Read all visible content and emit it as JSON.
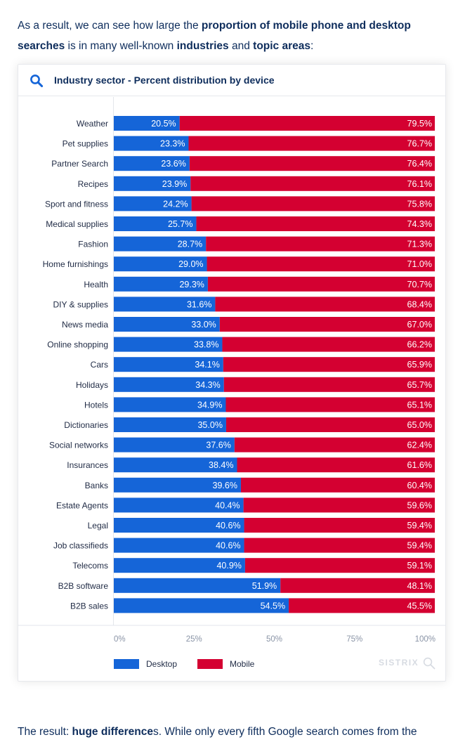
{
  "intro": {
    "t1": "As a result, we can see how large the ",
    "b1": "proportion of mobile phone and desktop searches",
    "t2": " is in many well-known ",
    "b2": "industries",
    "t3": " and ",
    "b3": "topic areas",
    "t4": ":"
  },
  "card": {
    "title": "Industry sector - Percent distribution by device",
    "icon": "search-icon",
    "watermark": "SISTRIX"
  },
  "colors": {
    "desktop": "#1565d8",
    "mobile": "#d40031",
    "text": "#0e2d5c"
  },
  "chart_data": {
    "type": "bar",
    "orientation": "horizontal",
    "stacked": true,
    "title": "Industry sector - Percent distribution by device",
    "categories": [
      "Weather",
      "Pet supplies",
      "Partner Search",
      "Recipes",
      "Sport and fitness",
      "Medical supplies",
      "Fashion",
      "Home furnishings",
      "Health",
      "DIY & supplies",
      "News media",
      "Online shopping",
      "Cars",
      "Holidays",
      "Hotels",
      "Dictionaries",
      "Social networks",
      "Insurances",
      "Banks",
      "Estate Agents",
      "Legal",
      "Job classifieds",
      "Telecoms",
      "B2B software",
      "B2B sales"
    ],
    "series": [
      {
        "name": "Desktop",
        "color": "#1565d8",
        "values": [
          20.5,
          23.3,
          23.6,
          23.9,
          24.2,
          25.7,
          28.7,
          29.0,
          29.3,
          31.6,
          33.0,
          33.8,
          34.1,
          34.3,
          34.9,
          35.0,
          37.6,
          38.4,
          39.6,
          40.4,
          40.6,
          40.6,
          40.9,
          51.9,
          54.5
        ]
      },
      {
        "name": "Mobile",
        "color": "#d40031",
        "values": [
          79.5,
          76.7,
          76.4,
          76.1,
          75.8,
          74.3,
          71.3,
          71.0,
          70.7,
          68.4,
          67.0,
          66.2,
          65.9,
          65.7,
          65.1,
          65.0,
          62.4,
          61.6,
          60.4,
          59.6,
          59.4,
          59.4,
          59.1,
          48.1,
          45.5
        ]
      }
    ],
    "x_ticks": [
      "0%",
      "25%",
      "50%",
      "75%",
      "100%"
    ],
    "xlim": [
      0,
      100
    ],
    "legend_position": "bottom-left"
  },
  "outro": {
    "t1": "The result: ",
    "b1": "huge difference",
    "t2": "s. While only every fifth Google search comes from the"
  }
}
